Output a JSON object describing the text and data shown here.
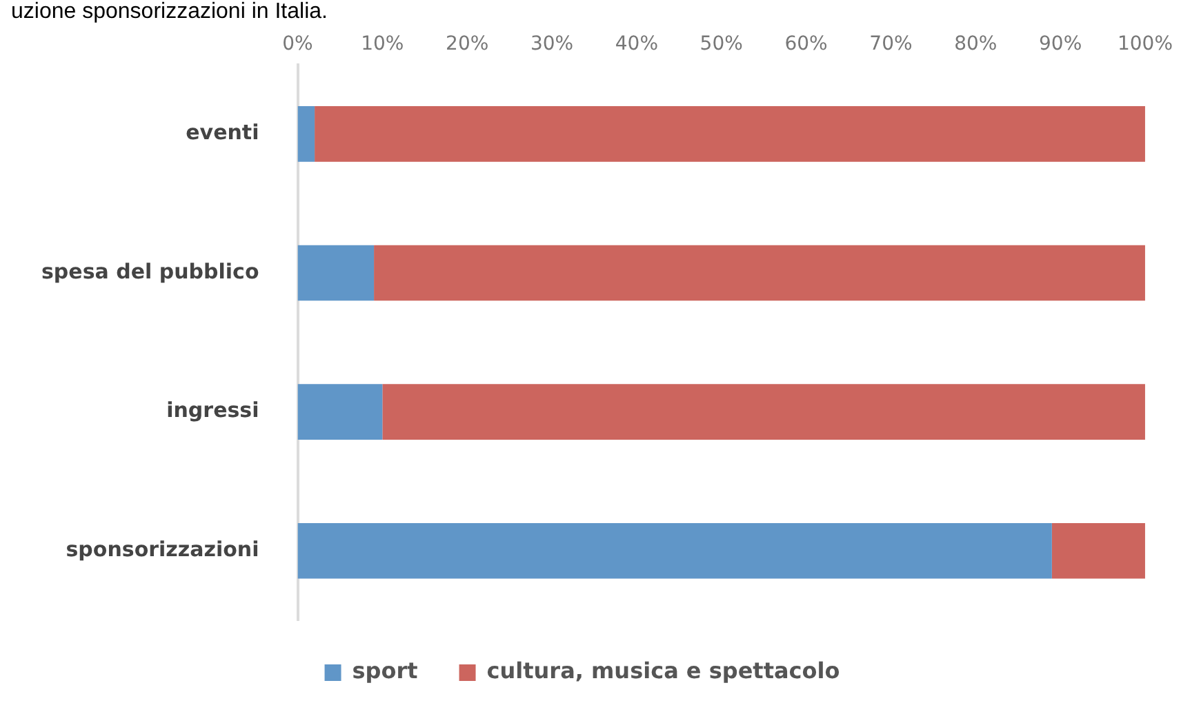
{
  "chart_data": {
    "type": "bar",
    "orientation": "horizontal",
    "stacked": true,
    "title": "uzione sponsorizzazioni in Italia.",
    "categories": [
      "eventi",
      "spesa del pubblico",
      "ingressi",
      "sponsorizzazioni"
    ],
    "series": [
      {
        "name": "sport",
        "color": "#6096c8",
        "values": [
          2,
          9,
          10,
          89
        ]
      },
      {
        "name": "cultura, musica e spettacolo",
        "color": "#cc655e",
        "values": [
          98,
          91,
          90,
          11
        ]
      }
    ],
    "xlim": [
      0,
      100
    ],
    "xticks": [
      {
        "value": 0,
        "label": "0%"
      },
      {
        "value": 10,
        "label": "10%"
      },
      {
        "value": 20,
        "label": "20%"
      },
      {
        "value": 30,
        "label": "30%"
      },
      {
        "value": 40,
        "label": "40%"
      },
      {
        "value": 50,
        "label": "50%"
      },
      {
        "value": 60,
        "label": "60%"
      },
      {
        "value": 70,
        "label": "70%"
      },
      {
        "value": 80,
        "label": "80%"
      },
      {
        "value": 90,
        "label": "90%"
      },
      {
        "value": 100,
        "label": "100%"
      }
    ],
    "grid": false,
    "legend": "bottom"
  }
}
